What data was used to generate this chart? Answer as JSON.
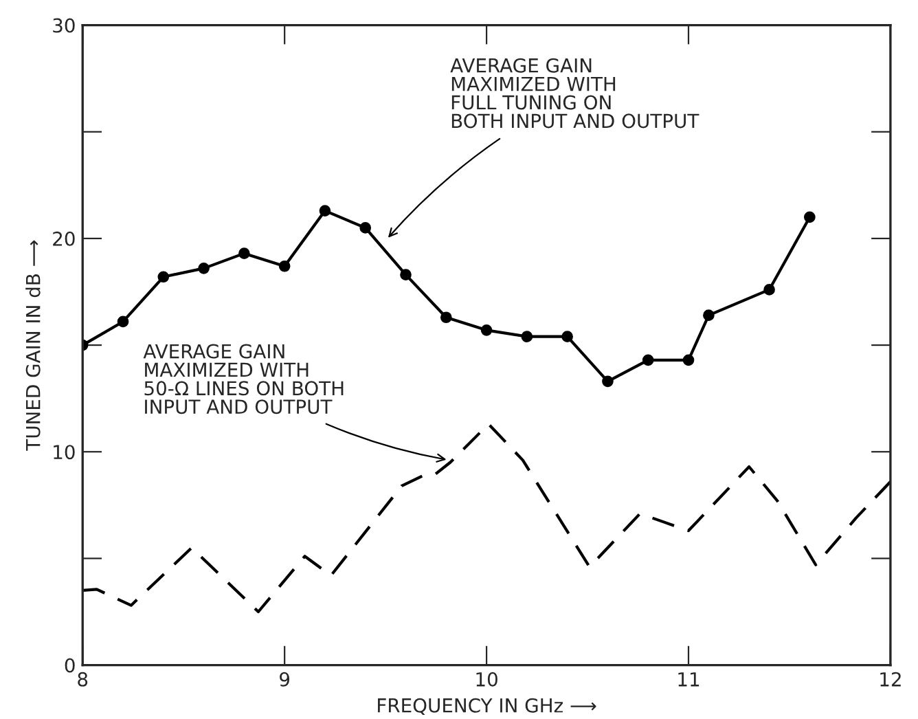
{
  "chart_data": {
    "type": "line",
    "xlabel": "FREQUENCY IN GHz ⟶",
    "ylabel": "TUNED GAIN IN dB ⟶",
    "xlim": [
      8,
      12
    ],
    "xticks": [
      8,
      9,
      10,
      11,
      12
    ],
    "ylim": [
      0,
      30
    ],
    "yticks": [
      0,
      {
        "value": 5,
        "label": null
      },
      10,
      {
        "value": 15,
        "label": null
      },
      20,
      {
        "value": 25,
        "label": null
      },
      30
    ],
    "grid": false,
    "series": [
      {
        "color": "#000000",
        "marker": "circle",
        "line_style": "solid",
        "x": [
          8.0,
          8.2,
          8.4,
          8.6,
          8.8,
          9.0,
          9.2,
          9.4,
          9.6,
          9.8,
          10.0,
          10.2,
          10.4,
          10.6,
          10.8,
          11.0,
          11.1,
          11.4,
          11.6
        ],
        "values": [
          15.0,
          16.1,
          18.2,
          18.6,
          19.3,
          18.7,
          21.3,
          20.5,
          18.3,
          16.3,
          15.7,
          15.4,
          15.4,
          13.3,
          14.3,
          14.3,
          16.4,
          17.6,
          21.0
        ]
      },
      {
        "color": "#000000",
        "marker": "none",
        "line_style": "dashed",
        "x": [
          8.0,
          8.07,
          8.24,
          8.54,
          8.87,
          9.1,
          9.23,
          9.58,
          9.69,
          9.74,
          9.82,
          10.01,
          10.18,
          10.51,
          10.76,
          11.0,
          11.3,
          11.44,
          11.63,
          11.83,
          12.0
        ],
        "values": [
          3.5,
          3.55,
          2.8,
          5.5,
          2.5,
          5.1,
          4.2,
          8.4,
          8.9,
          8.9,
          9.5,
          11.3,
          9.6,
          4.6,
          7.1,
          6.3,
          9.3,
          7.7,
          4.7,
          6.9,
          8.6
        ]
      }
    ],
    "annotations": [
      {
        "text": "AVERAGE GAIN\nMAXIMIZED WITH\nFULL TUNING ON\nBOTH INPUT AND OUTPUT",
        "x": 9.5,
        "y": 19.9
      },
      {
        "text": "AVERAGE GAIN\nMAXIMIZED WITH\n50-Ω LINES ON BOTH\nINPUT AND OUTPUT",
        "x": 9.82,
        "y": 9.6
      }
    ]
  }
}
